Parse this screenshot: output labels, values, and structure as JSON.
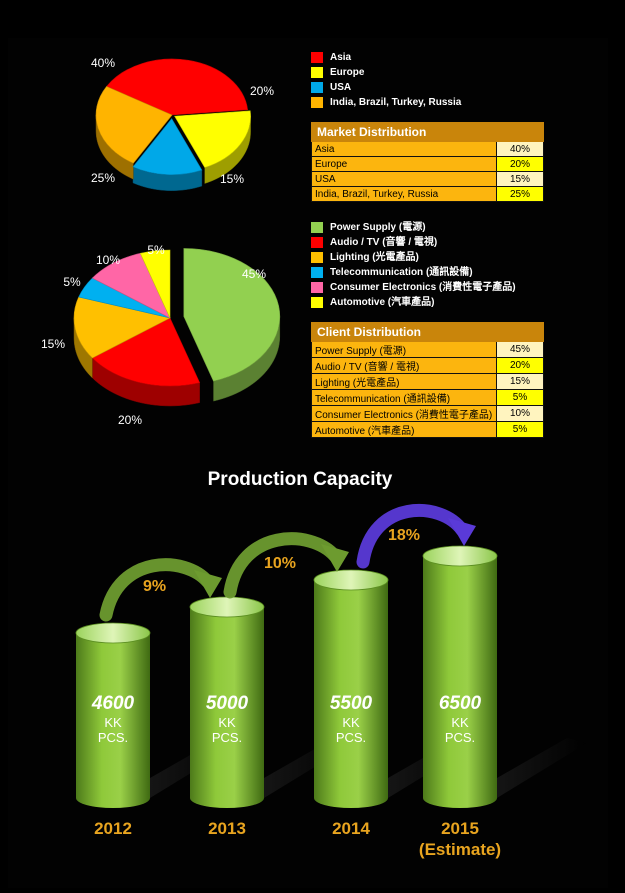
{
  "chart_data": [
    {
      "type": "pie",
      "title": "Market Distribution",
      "series": [
        {
          "name": "Asia",
          "value": 40,
          "label": "40%",
          "color": "#ff0000"
        },
        {
          "name": "Europe",
          "value": 20,
          "label": "20%",
          "color": "#ffff00"
        },
        {
          "name": "USA",
          "value": 15,
          "label": "15%",
          "color": "#00a8e8"
        },
        {
          "name": "India, Brazil, Turkey, Russia",
          "value": 25,
          "label": "25%",
          "color": "#ffb400"
        }
      ]
    },
    {
      "type": "pie",
      "title": "Client Distribution",
      "series": [
        {
          "name": "Power Supply (電源)",
          "value": 45,
          "label": "45%",
          "color": "#92d050"
        },
        {
          "name": "Audio / TV (音響 / 電視)",
          "value": 20,
          "label": "20%",
          "color": "#ff0000"
        },
        {
          "name": "Lighting (光電產品)",
          "value": 15,
          "label": "15%",
          "color": "#ffc000"
        },
        {
          "name": "Telecommunication (通訊設備)",
          "value": 5,
          "label": "5%",
          "color": "#00b0f0"
        },
        {
          "name": "Consumer Electronics (消費性電子產品)",
          "value": 10,
          "label": "10%",
          "color": "#ff66a6"
        },
        {
          "name": "Automotive (汽車產品)",
          "value": 5,
          "label": "5%",
          "color": "#ffff00"
        }
      ]
    },
    {
      "type": "bar",
      "title": "Production Capacity",
      "categories": [
        "2012",
        "2013",
        "2014",
        "2015"
      ],
      "category_notes": [
        "",
        "",
        "",
        "(Estimate)"
      ],
      "values": [
        4600,
        5000,
        5500,
        6500
      ],
      "value_labels": [
        "4600",
        "5000",
        "5500",
        "6500"
      ],
      "unit_line1": "KK",
      "unit_line2": "PCS.",
      "growth": [
        "9%",
        "10%",
        "18%"
      ]
    }
  ],
  "tables": {
    "market": {
      "header": "Market Distribution",
      "rows": [
        {
          "name": "Asia",
          "value": "40%"
        },
        {
          "name": "Europe",
          "value": "20%"
        },
        {
          "name": "USA",
          "value": "15%"
        },
        {
          "name": "India, Brazil, Turkey, Russia",
          "value": "25%"
        }
      ]
    },
    "client": {
      "header": "Client Distribution",
      "rows": [
        {
          "name": "Power Supply (電源)",
          "value": "45%"
        },
        {
          "name": "Audio / TV (音響 / 電視)",
          "value": "20%"
        },
        {
          "name": "Lighting (光電產品)",
          "value": "15%"
        },
        {
          "name": "Telecommunication (通訊設備)",
          "value": "5%"
        },
        {
          "name": "Consumer Electronics (消費性電子產品)",
          "value": "10%"
        },
        {
          "name": "Automotive (汽車產品)",
          "value": "5%"
        }
      ]
    }
  },
  "legends": {
    "market": [
      {
        "label": "Asia",
        "color": "#ff0000"
      },
      {
        "label": "Europe",
        "color": "#ffff00"
      },
      {
        "label": "USA",
        "color": "#00a8e8"
      },
      {
        "label": "India, Brazil, Turkey, Russia",
        "color": "#ffb400"
      }
    ],
    "client": [
      {
        "label": "Power Supply (電源)",
        "color": "#92d050"
      },
      {
        "label": "Audio / TV (音響 / 電視)",
        "color": "#ff0000"
      },
      {
        "label": "Lighting (光電產品)",
        "color": "#ffc000"
      },
      {
        "label": "Telecommunication (通訊設備)",
        "color": "#00b0f0"
      },
      {
        "label": "Consumer Electronics (消費性電子產品)",
        "color": "#ff66a6"
      },
      {
        "label": "Automotive (汽車產品)",
        "color": "#ffff00"
      }
    ]
  },
  "production": {
    "title": "Production Capacity"
  }
}
